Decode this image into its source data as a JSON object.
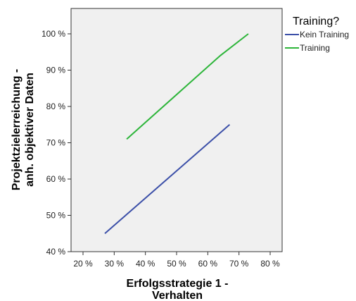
{
  "chart_data": {
    "type": "line",
    "xlabel": [
      "Erfolgsstrategie 1 -",
      "Verhalten"
    ],
    "ylabel": [
      "Projektzielerreichung -",
      "anh. objektiver Daten"
    ],
    "xlim": [
      20,
      80
    ],
    "ylim": [
      40,
      100
    ],
    "x_ticks": [
      "20 %",
      "30 %",
      "40 %",
      "50 %",
      "60 %",
      "70 %",
      "80 %"
    ],
    "y_ticks": [
      "40 %",
      "50 %",
      "60 %",
      "70 %",
      "80 %",
      "90 %",
      "100 %"
    ],
    "grid": false,
    "legend_placement": "right",
    "legend_title": "Training?",
    "series": [
      {
        "name": "Kein Training",
        "color": "#3b4fa8",
        "x": [
          27,
          67
        ],
        "y": [
          45,
          75
        ]
      },
      {
        "name": "Training",
        "color": "#2db53a",
        "x": [
          34,
          64,
          73
        ],
        "y": [
          71,
          94,
          100
        ]
      }
    ]
  },
  "colors": {
    "plot_background": "#f0f0f0",
    "axis": "#333333"
  }
}
